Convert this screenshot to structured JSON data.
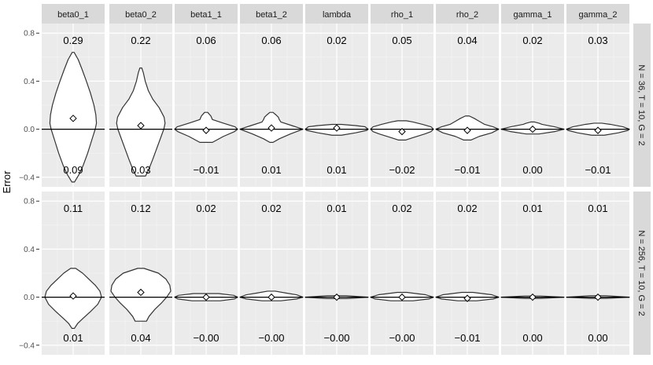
{
  "chart_data": {
    "type": "violin",
    "ylabel": "Error",
    "xlabel": "",
    "ylim": [
      -0.48,
      0.88
    ],
    "yticks": [
      -0.4,
      0.0,
      0.4,
      0.8
    ],
    "ytick_labels": [
      "-0.4",
      "0.0",
      "0.4",
      "0.8"
    ],
    "reference_line": 0,
    "columns": [
      "beta0_1",
      "beta0_2",
      "beta1_1",
      "beta1_2",
      "lambda",
      "rho_1",
      "rho_2",
      "gamma_1",
      "gamma_2"
    ],
    "rows": [
      {
        "strip": "N = 36, T = 10, G = 2",
        "top_labels": [
          "0.29",
          "0.22",
          "0.06",
          "0.06",
          "0.02",
          "0.05",
          "0.04",
          "0.02",
          "0.03"
        ],
        "bottom_labels": [
          "0.09",
          "0.03",
          "−0.01",
          "0.01",
          "0.01",
          "−0.02",
          "−0.01",
          "0.00",
          "−0.01"
        ],
        "means": [
          0.09,
          0.03,
          -0.01,
          0.01,
          0.01,
          -0.02,
          -0.01,
          0.0,
          -0.01
        ],
        "violins": [
          {
            "min": -0.44,
            "max": 0.64,
            "density": [
              [
                -0.44,
                0.04
              ],
              [
                -0.38,
                0.18
              ],
              [
                -0.3,
                0.32
              ],
              [
                -0.2,
                0.46
              ],
              [
                -0.1,
                0.58
              ],
              [
                0.0,
                0.7
              ],
              [
                0.05,
                0.74
              ],
              [
                0.12,
                0.72
              ],
              [
                0.2,
                0.66
              ],
              [
                0.3,
                0.55
              ],
              [
                0.4,
                0.42
              ],
              [
                0.5,
                0.28
              ],
              [
                0.58,
                0.16
              ],
              [
                0.64,
                0.03
              ]
            ]
          },
          {
            "min": -0.39,
            "max": 0.51,
            "density": [
              [
                -0.39,
                0.15
              ],
              [
                -0.33,
                0.26
              ],
              [
                -0.25,
                0.38
              ],
              [
                -0.15,
                0.52
              ],
              [
                -0.05,
                0.66
              ],
              [
                0.0,
                0.73
              ],
              [
                0.05,
                0.77
              ],
              [
                0.1,
                0.74
              ],
              [
                0.18,
                0.58
              ],
              [
                0.25,
                0.38
              ],
              [
                0.32,
                0.24
              ],
              [
                0.4,
                0.14
              ],
              [
                0.47,
                0.08
              ],
              [
                0.51,
                0.03
              ]
            ]
          },
          {
            "min": -0.11,
            "max": 0.14,
            "density": [
              [
                -0.11,
                0.2
              ],
              [
                -0.06,
                0.55
              ],
              [
                -0.02,
                0.9
              ],
              [
                0.0,
                1.0
              ],
              [
                0.02,
                0.92
              ],
              [
                0.05,
                0.55
              ],
              [
                0.08,
                0.2
              ],
              [
                0.11,
                0.15
              ],
              [
                0.14,
                0.05
              ]
            ]
          },
          {
            "min": -0.11,
            "max": 0.14,
            "density": [
              [
                -0.11,
                0.05
              ],
              [
                -0.08,
                0.25
              ],
              [
                -0.04,
                0.6
              ],
              [
                0.0,
                1.0
              ],
              [
                0.03,
                0.65
              ],
              [
                0.06,
                0.3
              ],
              [
                0.08,
                0.25
              ],
              [
                0.1,
                0.22
              ],
              [
                0.12,
                0.14
              ],
              [
                0.14,
                0.05
              ]
            ]
          },
          {
            "min": -0.05,
            "max": 0.04,
            "density": [
              [
                -0.05,
                0.15
              ],
              [
                -0.03,
                0.6
              ],
              [
                -0.01,
                0.95
              ],
              [
                0.0,
                1.0
              ],
              [
                0.02,
                0.9
              ],
              [
                0.03,
                0.6
              ],
              [
                0.04,
                0.15
              ]
            ]
          },
          {
            "min": -0.09,
            "max": 0.07,
            "density": [
              [
                -0.09,
                0.12
              ],
              [
                -0.07,
                0.35
              ],
              [
                -0.04,
                0.72
              ],
              [
                -0.02,
                0.92
              ],
              [
                0.0,
                1.0
              ],
              [
                0.02,
                0.92
              ],
              [
                0.04,
                0.65
              ],
              [
                0.06,
                0.35
              ],
              [
                0.07,
                0.14
              ]
            ]
          },
          {
            "min": -0.09,
            "max": 0.11,
            "density": [
              [
                -0.09,
                0.12
              ],
              [
                -0.06,
                0.38
              ],
              [
                -0.03,
                0.78
              ],
              [
                0.0,
                1.0
              ],
              [
                0.02,
                0.82
              ],
              [
                0.04,
                0.55
              ],
              [
                0.07,
                0.35
              ],
              [
                0.09,
                0.22
              ],
              [
                0.11,
                0.06
              ]
            ]
          },
          {
            "min": -0.04,
            "max": 0.06,
            "density": [
              [
                -0.04,
                0.2
              ],
              [
                -0.02,
                0.7
              ],
              [
                0.0,
                1.0
              ],
              [
                0.02,
                0.7
              ],
              [
                0.04,
                0.3
              ],
              [
                0.05,
                0.2
              ],
              [
                0.06,
                0.06
              ]
            ]
          },
          {
            "min": -0.05,
            "max": 0.05,
            "density": [
              [
                -0.05,
                0.2
              ],
              [
                -0.03,
                0.65
              ],
              [
                -0.01,
                0.95
              ],
              [
                0.0,
                1.0
              ],
              [
                0.02,
                0.8
              ],
              [
                0.04,
                0.4
              ],
              [
                0.05,
                0.12
              ]
            ]
          }
        ]
      },
      {
        "strip": "N = 256, T = 10, G = 2",
        "top_labels": [
          "0.11",
          "0.12",
          "0.02",
          "0.02",
          "0.01",
          "0.02",
          "0.02",
          "0.01",
          "0.01"
        ],
        "bottom_labels": [
          "0.01",
          "0.04",
          "−0.00",
          "−0.00",
          "−0.00",
          "−0.00",
          "−0.01",
          "0.00",
          "0.00"
        ],
        "means": [
          0.01,
          0.04,
          0.0,
          0.0,
          0.0,
          0.0,
          -0.01,
          0.0,
          0.0
        ],
        "violins": [
          {
            "min": -0.26,
            "max": 0.24,
            "density": [
              [
                -0.26,
                0.04
              ],
              [
                -0.22,
                0.14
              ],
              [
                -0.18,
                0.3
              ],
              [
                -0.12,
                0.55
              ],
              [
                -0.06,
                0.78
              ],
              [
                0.0,
                0.9
              ],
              [
                0.05,
                0.85
              ],
              [
                0.1,
                0.7
              ],
              [
                0.15,
                0.5
              ],
              [
                0.2,
                0.3
              ],
              [
                0.24,
                0.08
              ]
            ]
          },
          {
            "min": -0.2,
            "max": 0.24,
            "density": [
              [
                -0.2,
                0.18
              ],
              [
                -0.16,
                0.26
              ],
              [
                -0.1,
                0.45
              ],
              [
                -0.05,
                0.65
              ],
              [
                0.0,
                0.82
              ],
              [
                0.05,
                0.95
              ],
              [
                0.1,
                0.92
              ],
              [
                0.15,
                0.8
              ],
              [
                0.2,
                0.56
              ],
              [
                0.24,
                0.1
              ]
            ]
          },
          {
            "min": -0.03,
            "max": 0.03,
            "density": [
              [
                -0.03,
                0.45
              ],
              [
                -0.015,
                0.9
              ],
              [
                0.0,
                1.0
              ],
              [
                0.015,
                0.88
              ],
              [
                0.03,
                0.4
              ]
            ]
          },
          {
            "min": -0.03,
            "max": 0.05,
            "density": [
              [
                -0.03,
                0.3
              ],
              [
                -0.015,
                0.8
              ],
              [
                0.0,
                1.0
              ],
              [
                0.02,
                0.8
              ],
              [
                0.035,
                0.45
              ],
              [
                0.05,
                0.12
              ]
            ]
          },
          {
            "min": -0.012,
            "max": 0.012,
            "density": [
              [
                -0.012,
                0.3
              ],
              [
                0.0,
                1.0
              ],
              [
                0.012,
                0.3
              ]
            ]
          },
          {
            "min": -0.03,
            "max": 0.04,
            "density": [
              [
                -0.03,
                0.35
              ],
              [
                -0.015,
                0.85
              ],
              [
                0.0,
                1.0
              ],
              [
                0.02,
                0.75
              ],
              [
                0.04,
                0.15
              ]
            ]
          },
          {
            "min": -0.03,
            "max": 0.04,
            "density": [
              [
                -0.03,
                0.3
              ],
              [
                -0.015,
                0.82
              ],
              [
                0.0,
                1.0
              ],
              [
                0.02,
                0.78
              ],
              [
                0.04,
                0.18
              ]
            ]
          },
          {
            "min": -0.01,
            "max": 0.01,
            "density": [
              [
                -0.01,
                0.25
              ],
              [
                0.0,
                1.0
              ],
              [
                0.01,
                0.25
              ]
            ]
          },
          {
            "min": -0.01,
            "max": 0.012,
            "density": [
              [
                -0.01,
                0.25
              ],
              [
                0.0,
                1.0
              ],
              [
                0.012,
                0.25
              ]
            ]
          }
        ]
      }
    ]
  }
}
